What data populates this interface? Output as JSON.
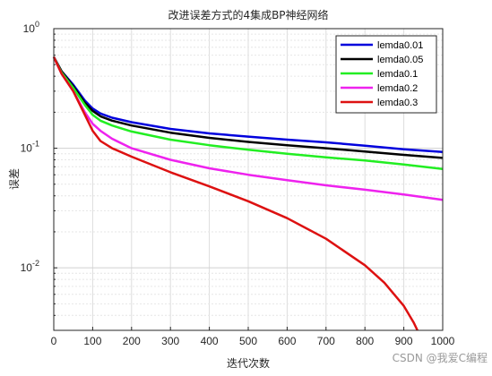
{
  "chart_data": {
    "type": "line",
    "title": "改进误差方式的4集成BP神经网络",
    "xlabel": "迭代次数",
    "ylabel": "误差",
    "xlim": [
      0,
      1000
    ],
    "ylim": [
      0.003,
      1
    ],
    "y_scale": "log",
    "grid": true,
    "legend_position": "top-right",
    "x_ticks": [
      "0",
      "100",
      "200",
      "300",
      "400",
      "500",
      "600",
      "700",
      "800",
      "900",
      "1000"
    ],
    "y_ticks": [
      {
        "base": "10",
        "exp": "0",
        "value": 1
      },
      {
        "base": "10",
        "exp": "-1",
        "value": 0.1
      },
      {
        "base": "10",
        "exp": "-2",
        "value": 0.01
      }
    ],
    "series": [
      {
        "name": "lemda0.01",
        "color": "#0000dd",
        "points": [
          [
            0,
            0.58
          ],
          [
            20,
            0.44
          ],
          [
            50,
            0.34
          ],
          [
            80,
            0.25
          ],
          [
            100,
            0.215
          ],
          [
            120,
            0.195
          ],
          [
            150,
            0.18
          ],
          [
            200,
            0.165
          ],
          [
            300,
            0.145
          ],
          [
            400,
            0.133
          ],
          [
            500,
            0.125
          ],
          [
            600,
            0.118
          ],
          [
            700,
            0.112
          ],
          [
            800,
            0.105
          ],
          [
            900,
            0.098
          ],
          [
            1000,
            0.093
          ]
        ]
      },
      {
        "name": "lemda0.05",
        "color": "#000000",
        "points": [
          [
            0,
            0.58
          ],
          [
            20,
            0.44
          ],
          [
            50,
            0.33
          ],
          [
            80,
            0.24
          ],
          [
            100,
            0.205
          ],
          [
            120,
            0.185
          ],
          [
            150,
            0.17
          ],
          [
            200,
            0.155
          ],
          [
            300,
            0.135
          ],
          [
            400,
            0.122
          ],
          [
            500,
            0.113
          ],
          [
            600,
            0.106
          ],
          [
            700,
            0.1
          ],
          [
            800,
            0.094
          ],
          [
            900,
            0.088
          ],
          [
            1000,
            0.083
          ]
        ]
      },
      {
        "name": "lemda0.1",
        "color": "#22ee22",
        "points": [
          [
            0,
            0.58
          ],
          [
            20,
            0.43
          ],
          [
            50,
            0.32
          ],
          [
            80,
            0.23
          ],
          [
            100,
            0.19
          ],
          [
            120,
            0.17
          ],
          [
            150,
            0.155
          ],
          [
            200,
            0.138
          ],
          [
            300,
            0.118
          ],
          [
            400,
            0.106
          ],
          [
            500,
            0.097
          ],
          [
            600,
            0.09
          ],
          [
            700,
            0.084
          ],
          [
            800,
            0.079
          ],
          [
            900,
            0.073
          ],
          [
            1000,
            0.067
          ]
        ]
      },
      {
        "name": "lemda0.2",
        "color": "#ee22ee",
        "points": [
          [
            0,
            0.58
          ],
          [
            20,
            0.42
          ],
          [
            50,
            0.3
          ],
          [
            80,
            0.2
          ],
          [
            100,
            0.16
          ],
          [
            120,
            0.14
          ],
          [
            150,
            0.12
          ],
          [
            200,
            0.1
          ],
          [
            300,
            0.08
          ],
          [
            400,
            0.068
          ],
          [
            500,
            0.06
          ],
          [
            600,
            0.054
          ],
          [
            700,
            0.049
          ],
          [
            800,
            0.045
          ],
          [
            900,
            0.041
          ],
          [
            1000,
            0.037
          ]
        ]
      },
      {
        "name": "lemda0.3",
        "color": "#dd1111",
        "points": [
          [
            0,
            0.58
          ],
          [
            20,
            0.42
          ],
          [
            50,
            0.3
          ],
          [
            80,
            0.19
          ],
          [
            100,
            0.14
          ],
          [
            120,
            0.115
          ],
          [
            150,
            0.1
          ],
          [
            200,
            0.085
          ],
          [
            300,
            0.063
          ],
          [
            400,
            0.048
          ],
          [
            500,
            0.036
          ],
          [
            600,
            0.026
          ],
          [
            700,
            0.0175
          ],
          [
            800,
            0.0105
          ],
          [
            850,
            0.0075
          ],
          [
            900,
            0.0048
          ],
          [
            925,
            0.0035
          ],
          [
            935,
            0.003
          ]
        ]
      }
    ]
  },
  "watermark": "CSDN @我爱C编程"
}
